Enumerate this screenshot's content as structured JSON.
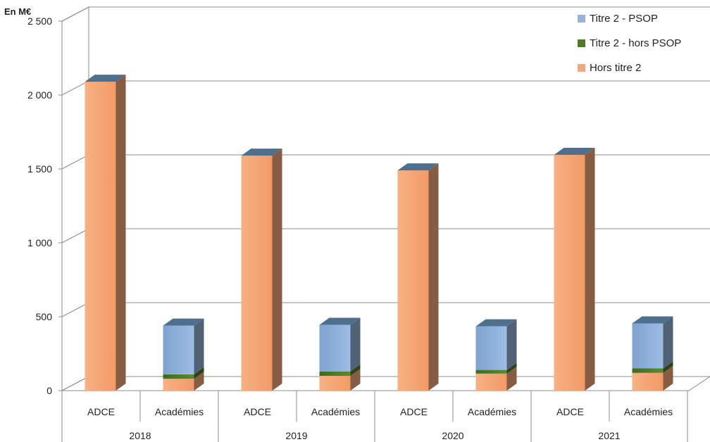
{
  "chart_data": {
    "type": "bar",
    "stacked": true,
    "three_d": true,
    "unit_label": "En M€",
    "ylim": [
      0,
      2500
    ],
    "y_ticks": [
      0,
      500,
      1000,
      1500,
      2000,
      2500
    ],
    "y_tick_labels": [
      "0",
      "500",
      "1 000",
      "1 500",
      "2 000",
      "2 500"
    ],
    "groups": [
      "2018",
      "2019",
      "2020",
      "2021"
    ],
    "categories": [
      "ADCE",
      "Académies"
    ],
    "grid": true,
    "legend_position": "top-right",
    "series": [
      {
        "name": "Titre 2 - PSOP",
        "color": "#95b3d7",
        "values": [
          [
            0,
            330
          ],
          [
            0,
            315
          ],
          [
            0,
            295
          ],
          [
            0,
            305
          ]
        ]
      },
      {
        "name": "Titre 2 - hors PSOP",
        "color": "#4f7a28",
        "values": [
          [
            0,
            30
          ],
          [
            0,
            30
          ],
          [
            0,
            25
          ],
          [
            0,
            30
          ]
        ]
      },
      {
        "name": "Hors titre 2",
        "color": "#f4a87a",
        "values": [
          [
            2090,
            80
          ],
          [
            1590,
            100
          ],
          [
            1490,
            115
          ],
          [
            1595,
            120
          ]
        ]
      }
    ]
  }
}
